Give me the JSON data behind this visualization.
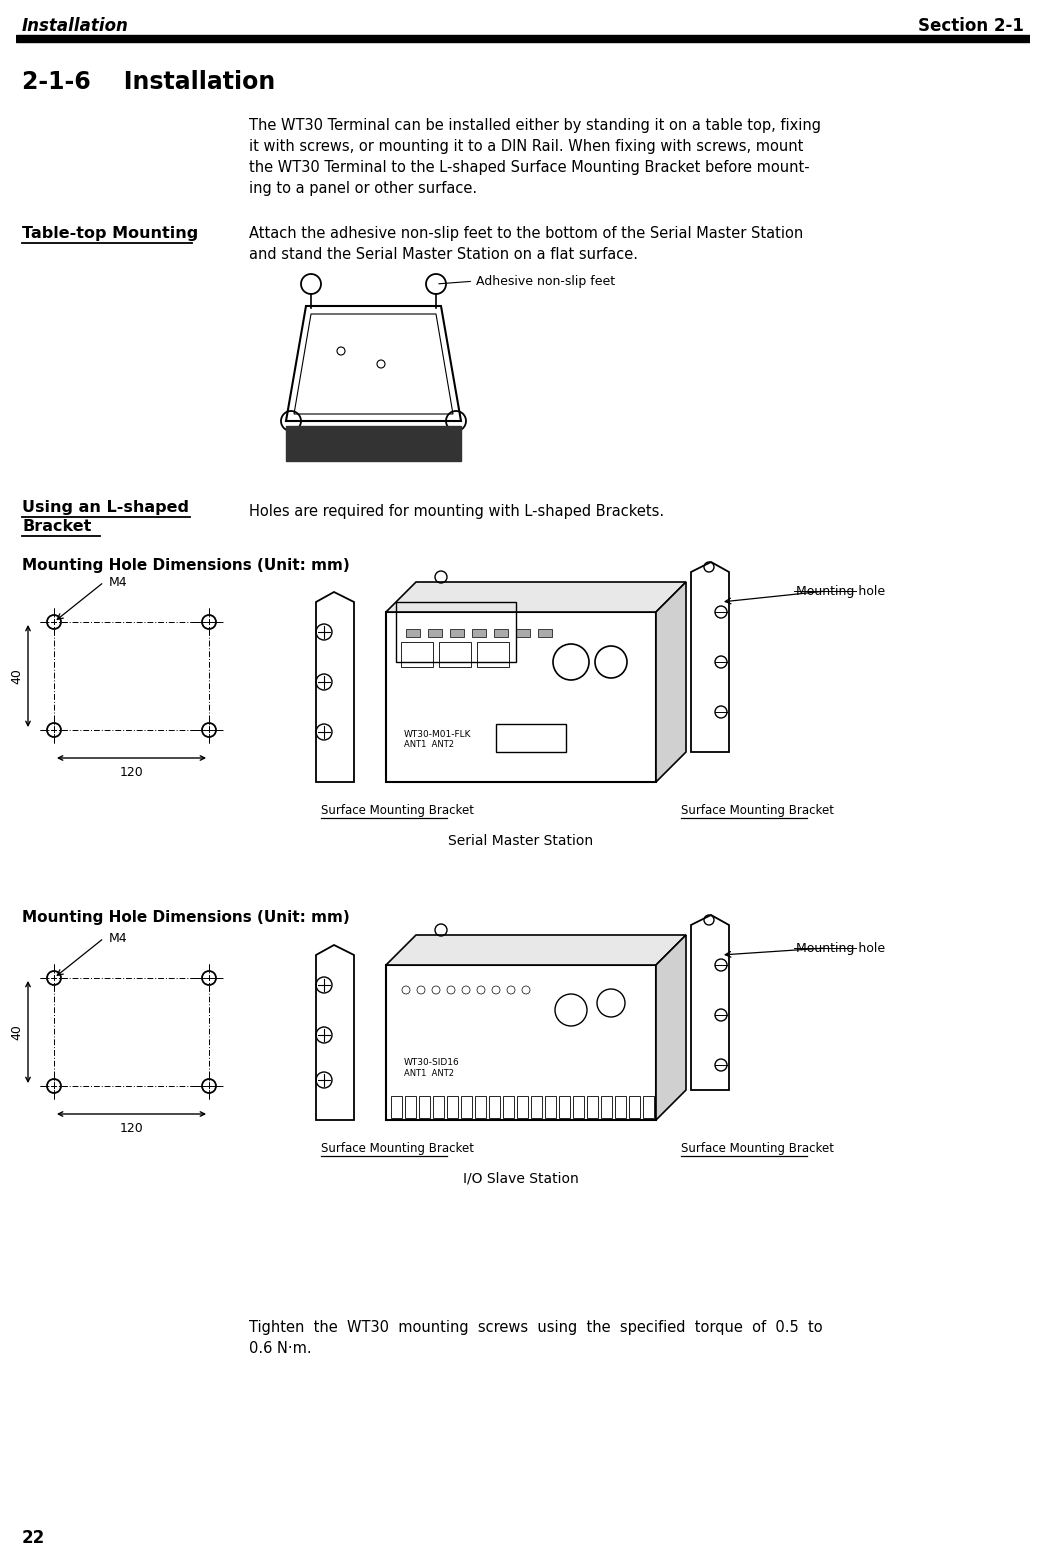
{
  "bg_color": "#ffffff",
  "header_italic_left": "Installation",
  "header_bold_right": "Section 2-1",
  "section_title": "2-1-6    Installation",
  "intro_text_line1": "The WT30 Terminal can be installed either by standing it on a table top, fixing",
  "intro_text_line2": "it with screws, or mounting it to a DIN Rail. When fixing with screws, mount",
  "intro_text_line3": "the WT30 Terminal to the L-shaped Surface Mounting Bracket before mount-",
  "intro_text_line4": "ing to a panel or other surface.",
  "table_top_label": "Table-top Mounting",
  "table_top_text_line1": "Attach the adhesive non-slip feet to the bottom of the Serial Master Station",
  "table_top_text_line2": "and stand the Serial Master Station on a flat surface.",
  "adhesive_label": "Adhesive non-slip feet",
  "l_shaped_label_line1": "Using an L-shaped",
  "l_shaped_label_line2": "Bracket",
  "l_shaped_text": "Holes are required for mounting with L-shaped Brackets.",
  "mounting_dim_label": "Mounting Hole Dimensions (Unit: mm)",
  "mounting_hole_label": "Mounting hole",
  "surface_bracket_label1": "Surface Mounting Bracket",
  "serial_master_label": "Serial Master Station",
  "surface_bracket_label2": "Surface Mounting Bracket",
  "mounting_dim_label2": "Mounting Hole Dimensions (Unit: mm)",
  "mounting_hole_label2": "Mounting hole",
  "surface_bracket_label3": "Surface Mounting Bracket",
  "io_slave_label": "I/O Slave Station",
  "surface_bracket_label4": "Surface Mounting Bracket",
  "tighten_text_line1": "Tighten  the  WT30  mounting  screws  using  the  specified  torque  of  0.5  to",
  "tighten_text_line2": "0.6 N·m.",
  "page_number": "22",
  "m4_label": "M4",
  "dim_40": "40",
  "dim_120": "120",
  "model1": "WT30-M01-FLK",
  "model2": "WT30-SID16",
  "ant_label": "ANT1ANT2"
}
